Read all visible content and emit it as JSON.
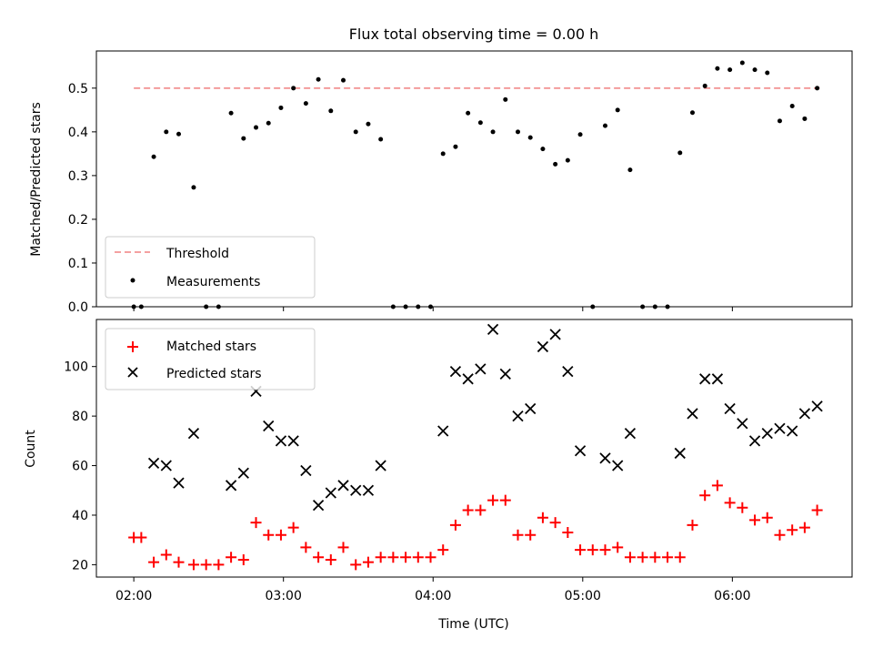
{
  "title": "Flux total observing time = 0.00 h",
  "colors": {
    "threshold": "#f08080",
    "measurement": "#000000",
    "matched": "#ff0000",
    "predicted": "#000000"
  },
  "chart_data": [
    {
      "type": "scatter",
      "ylabel": "Matched/Predicted stars",
      "xlim": [
        "01:45",
        "06:48"
      ],
      "ylim": [
        0,
        0.585
      ],
      "yticks": [
        "0.0",
        "0.1",
        "0.2",
        "0.3",
        "0.4",
        "0.5"
      ],
      "legend": {
        "position": "lower-left",
        "threshold_label": "Threshold",
        "measurements_label": "Measurements"
      },
      "threshold": {
        "value": 0.5,
        "x_start": "02:00",
        "x_end": "06:35"
      },
      "series": [
        {
          "name": "Measurements",
          "points": [
            [
              "02:00",
              0
            ],
            [
              "02:03",
              0
            ],
            [
              "02:08",
              0.343
            ],
            [
              "02:13",
              0.4
            ],
            [
              "02:18",
              0.395
            ],
            [
              "02:24",
              0.273
            ],
            [
              "02:29",
              0
            ],
            [
              "02:34",
              0
            ],
            [
              "02:39",
              0.443
            ],
            [
              "02:44",
              0.385
            ],
            [
              "02:49",
              0.41
            ],
            [
              "02:54",
              0.42
            ],
            [
              "02:59",
              0.455
            ],
            [
              "03:04",
              0.5
            ],
            [
              "03:09",
              0.465
            ],
            [
              "03:14",
              0.52
            ],
            [
              "03:19",
              0.448
            ],
            [
              "03:24",
              0.518
            ],
            [
              "03:29",
              0.4
            ],
            [
              "03:34",
              0.418
            ],
            [
              "03:39",
              0.383
            ],
            [
              "03:44",
              0
            ],
            [
              "03:49",
              0
            ],
            [
              "03:54",
              0
            ],
            [
              "03:59",
              0
            ],
            [
              "04:04",
              0.35
            ],
            [
              "04:09",
              0.366
            ],
            [
              "04:14",
              0.443
            ],
            [
              "04:19",
              0.421
            ],
            [
              "04:24",
              0.4
            ],
            [
              "04:29",
              0.474
            ],
            [
              "04:34",
              0.4
            ],
            [
              "04:39",
              0.387
            ],
            [
              "04:44",
              0.361
            ],
            [
              "04:49",
              0.326
            ],
            [
              "04:54",
              0.335
            ],
            [
              "04:59",
              0.394
            ],
            [
              "05:04",
              0
            ],
            [
              "05:09",
              0.414
            ],
            [
              "05:14",
              0.45
            ],
            [
              "05:19",
              0.313
            ],
            [
              "05:24",
              0
            ],
            [
              "05:29",
              0
            ],
            [
              "05:34",
              0
            ],
            [
              "05:39",
              0.352
            ],
            [
              "05:44",
              0.444
            ],
            [
              "05:49",
              0.505
            ],
            [
              "05:54",
              0.545
            ],
            [
              "05:59",
              0.542
            ],
            [
              "06:04",
              0.558
            ],
            [
              "06:09",
              0.542
            ],
            [
              "06:14",
              0.535
            ],
            [
              "06:19",
              0.425
            ],
            [
              "06:24",
              0.459
            ],
            [
              "06:29",
              0.43
            ],
            [
              "06:34",
              0.5
            ]
          ]
        }
      ]
    },
    {
      "type": "scatter",
      "xlabel": "Time (UTC)",
      "ylabel": "Count",
      "xlim": [
        "01:45",
        "06:48"
      ],
      "ylim": [
        15,
        119
      ],
      "yticks": [
        "20",
        "40",
        "60",
        "80",
        "100"
      ],
      "xticks": [
        "02:00",
        "03:00",
        "04:00",
        "05:00",
        "06:00"
      ],
      "legend": {
        "position": "top-left",
        "matched_label": "Matched stars",
        "predicted_label": "Predicted stars"
      },
      "series": [
        {
          "name": "Matched stars",
          "points": [
            [
              "02:00",
              31
            ],
            [
              "02:03",
              31
            ],
            [
              "02:08",
              21
            ],
            [
              "02:13",
              24
            ],
            [
              "02:18",
              21
            ],
            [
              "02:24",
              20
            ],
            [
              "02:29",
              20
            ],
            [
              "02:34",
              20
            ],
            [
              "02:39",
              23
            ],
            [
              "02:44",
              22
            ],
            [
              "02:49",
              37
            ],
            [
              "02:54",
              32
            ],
            [
              "02:59",
              32
            ],
            [
              "03:04",
              35
            ],
            [
              "03:09",
              27
            ],
            [
              "03:14",
              23
            ],
            [
              "03:19",
              22
            ],
            [
              "03:24",
              27
            ],
            [
              "03:29",
              20
            ],
            [
              "03:34",
              21
            ],
            [
              "03:39",
              23
            ],
            [
              "03:44",
              23
            ],
            [
              "03:49",
              23
            ],
            [
              "03:54",
              23
            ],
            [
              "03:59",
              23
            ],
            [
              "04:04",
              26
            ],
            [
              "04:09",
              36
            ],
            [
              "04:14",
              42
            ],
            [
              "04:19",
              42
            ],
            [
              "04:24",
              46
            ],
            [
              "04:29",
              46
            ],
            [
              "04:34",
              32
            ],
            [
              "04:39",
              32
            ],
            [
              "04:44",
              39
            ],
            [
              "04:49",
              37
            ],
            [
              "04:54",
              33
            ],
            [
              "04:59",
              26
            ],
            [
              "05:04",
              26
            ],
            [
              "05:09",
              26
            ],
            [
              "05:14",
              27
            ],
            [
              "05:19",
              23
            ],
            [
              "05:24",
              23
            ],
            [
              "05:29",
              23
            ],
            [
              "05:34",
              23
            ],
            [
              "05:39",
              23
            ],
            [
              "05:44",
              36
            ],
            [
              "05:49",
              48
            ],
            [
              "05:54",
              52
            ],
            [
              "05:59",
              45
            ],
            [
              "06:04",
              43
            ],
            [
              "06:09",
              38
            ],
            [
              "06:14",
              39
            ],
            [
              "06:19",
              32
            ],
            [
              "06:24",
              34
            ],
            [
              "06:29",
              35
            ],
            [
              "06:34",
              42
            ]
          ]
        },
        {
          "name": "Predicted stars",
          "points": [
            [
              "02:08",
              61
            ],
            [
              "02:13",
              60
            ],
            [
              "02:18",
              53
            ],
            [
              "02:24",
              73
            ],
            [
              "02:39",
              52
            ],
            [
              "02:44",
              57
            ],
            [
              "02:49",
              90
            ],
            [
              "02:54",
              76
            ],
            [
              "02:59",
              70
            ],
            [
              "03:04",
              70
            ],
            [
              "03:09",
              58
            ],
            [
              "03:14",
              44
            ],
            [
              "03:19",
              49
            ],
            [
              "03:24",
              52
            ],
            [
              "03:29",
              50
            ],
            [
              "03:34",
              50
            ],
            [
              "03:39",
              60
            ],
            [
              "04:04",
              74
            ],
            [
              "04:09",
              98
            ],
            [
              "04:14",
              95
            ],
            [
              "04:19",
              99
            ],
            [
              "04:24",
              115
            ],
            [
              "04:29",
              97
            ],
            [
              "04:34",
              80
            ],
            [
              "04:39",
              83
            ],
            [
              "04:44",
              108
            ],
            [
              "04:49",
              113
            ],
            [
              "04:54",
              98
            ],
            [
              "04:59",
              66
            ],
            [
              "05:09",
              63
            ],
            [
              "05:14",
              60
            ],
            [
              "05:19",
              73
            ],
            [
              "05:39",
              65
            ],
            [
              "05:44",
              81
            ],
            [
              "05:49",
              95
            ],
            [
              "05:54",
              95
            ],
            [
              "05:59",
              83
            ],
            [
              "06:04",
              77
            ],
            [
              "06:09",
              70
            ],
            [
              "06:14",
              73
            ],
            [
              "06:19",
              75
            ],
            [
              "06:24",
              74
            ],
            [
              "06:29",
              81
            ],
            [
              "06:34",
              84
            ]
          ]
        }
      ]
    }
  ]
}
